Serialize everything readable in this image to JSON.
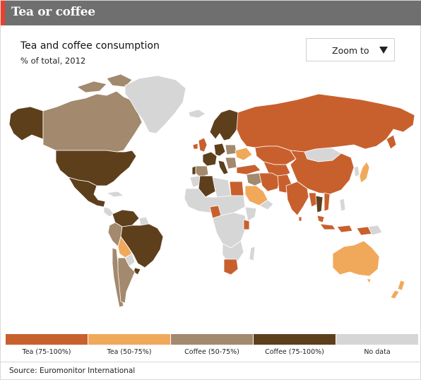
{
  "header": {
    "title": "Tea or coffee"
  },
  "chart": {
    "title": "Tea and coffee consumption",
    "subtitle": "% of total, 2012"
  },
  "zoom": {
    "label": "Zoom to"
  },
  "legend": {
    "items": [
      {
        "label": "Tea (75-100%)",
        "color": "#c8602e"
      },
      {
        "label": "Tea (50-75%)",
        "color": "#f0a95b"
      },
      {
        "label": "Coffee (50-75%)",
        "color": "#a3896d"
      },
      {
        "label": "Coffee (75-100%)",
        "color": "#5e3f1c"
      },
      {
        "label": "No data",
        "color": "#d6d6d6"
      }
    ]
  },
  "source": {
    "text": "Source: Euromonitor International"
  },
  "map": {
    "categories": {
      "tea_75_100": [
        "Russia",
        "Kazakhstan",
        "China",
        "India",
        "Pakistan",
        "Afghanistan",
        "Iran",
        "Turkey",
        "Egypt",
        "South Africa",
        "Ireland",
        "United Kingdom",
        "Kenya",
        "Vietnam",
        "Myanmar",
        "Mongolia"
      ],
      "tea_50_75": [
        "Australia",
        "New Zealand",
        "Japan",
        "Saudi Arabia",
        "Bolivia",
        "Ukraine",
        "Indonesia"
      ],
      "coffee_50_75": [
        "Canada",
        "Argentina",
        "Chile",
        "Peru",
        "Spain",
        "Poland",
        "Iraq"
      ],
      "coffee_75_100": [
        "United States",
        "Mexico",
        "Brazil",
        "Colombia",
        "Venezuela",
        "Alaska",
        "Norway",
        "Sweden",
        "Finland",
        "Algeria",
        "Portugal",
        "Germany",
        "France",
        "Italy",
        "Thailand",
        "Uruguay"
      ],
      "no_data": [
        "Greenland",
        "Libya",
        "Sudan",
        "Mali",
        "Niger",
        "Chad",
        "Namibia",
        "Angola",
        "Congo"
      ]
    }
  }
}
